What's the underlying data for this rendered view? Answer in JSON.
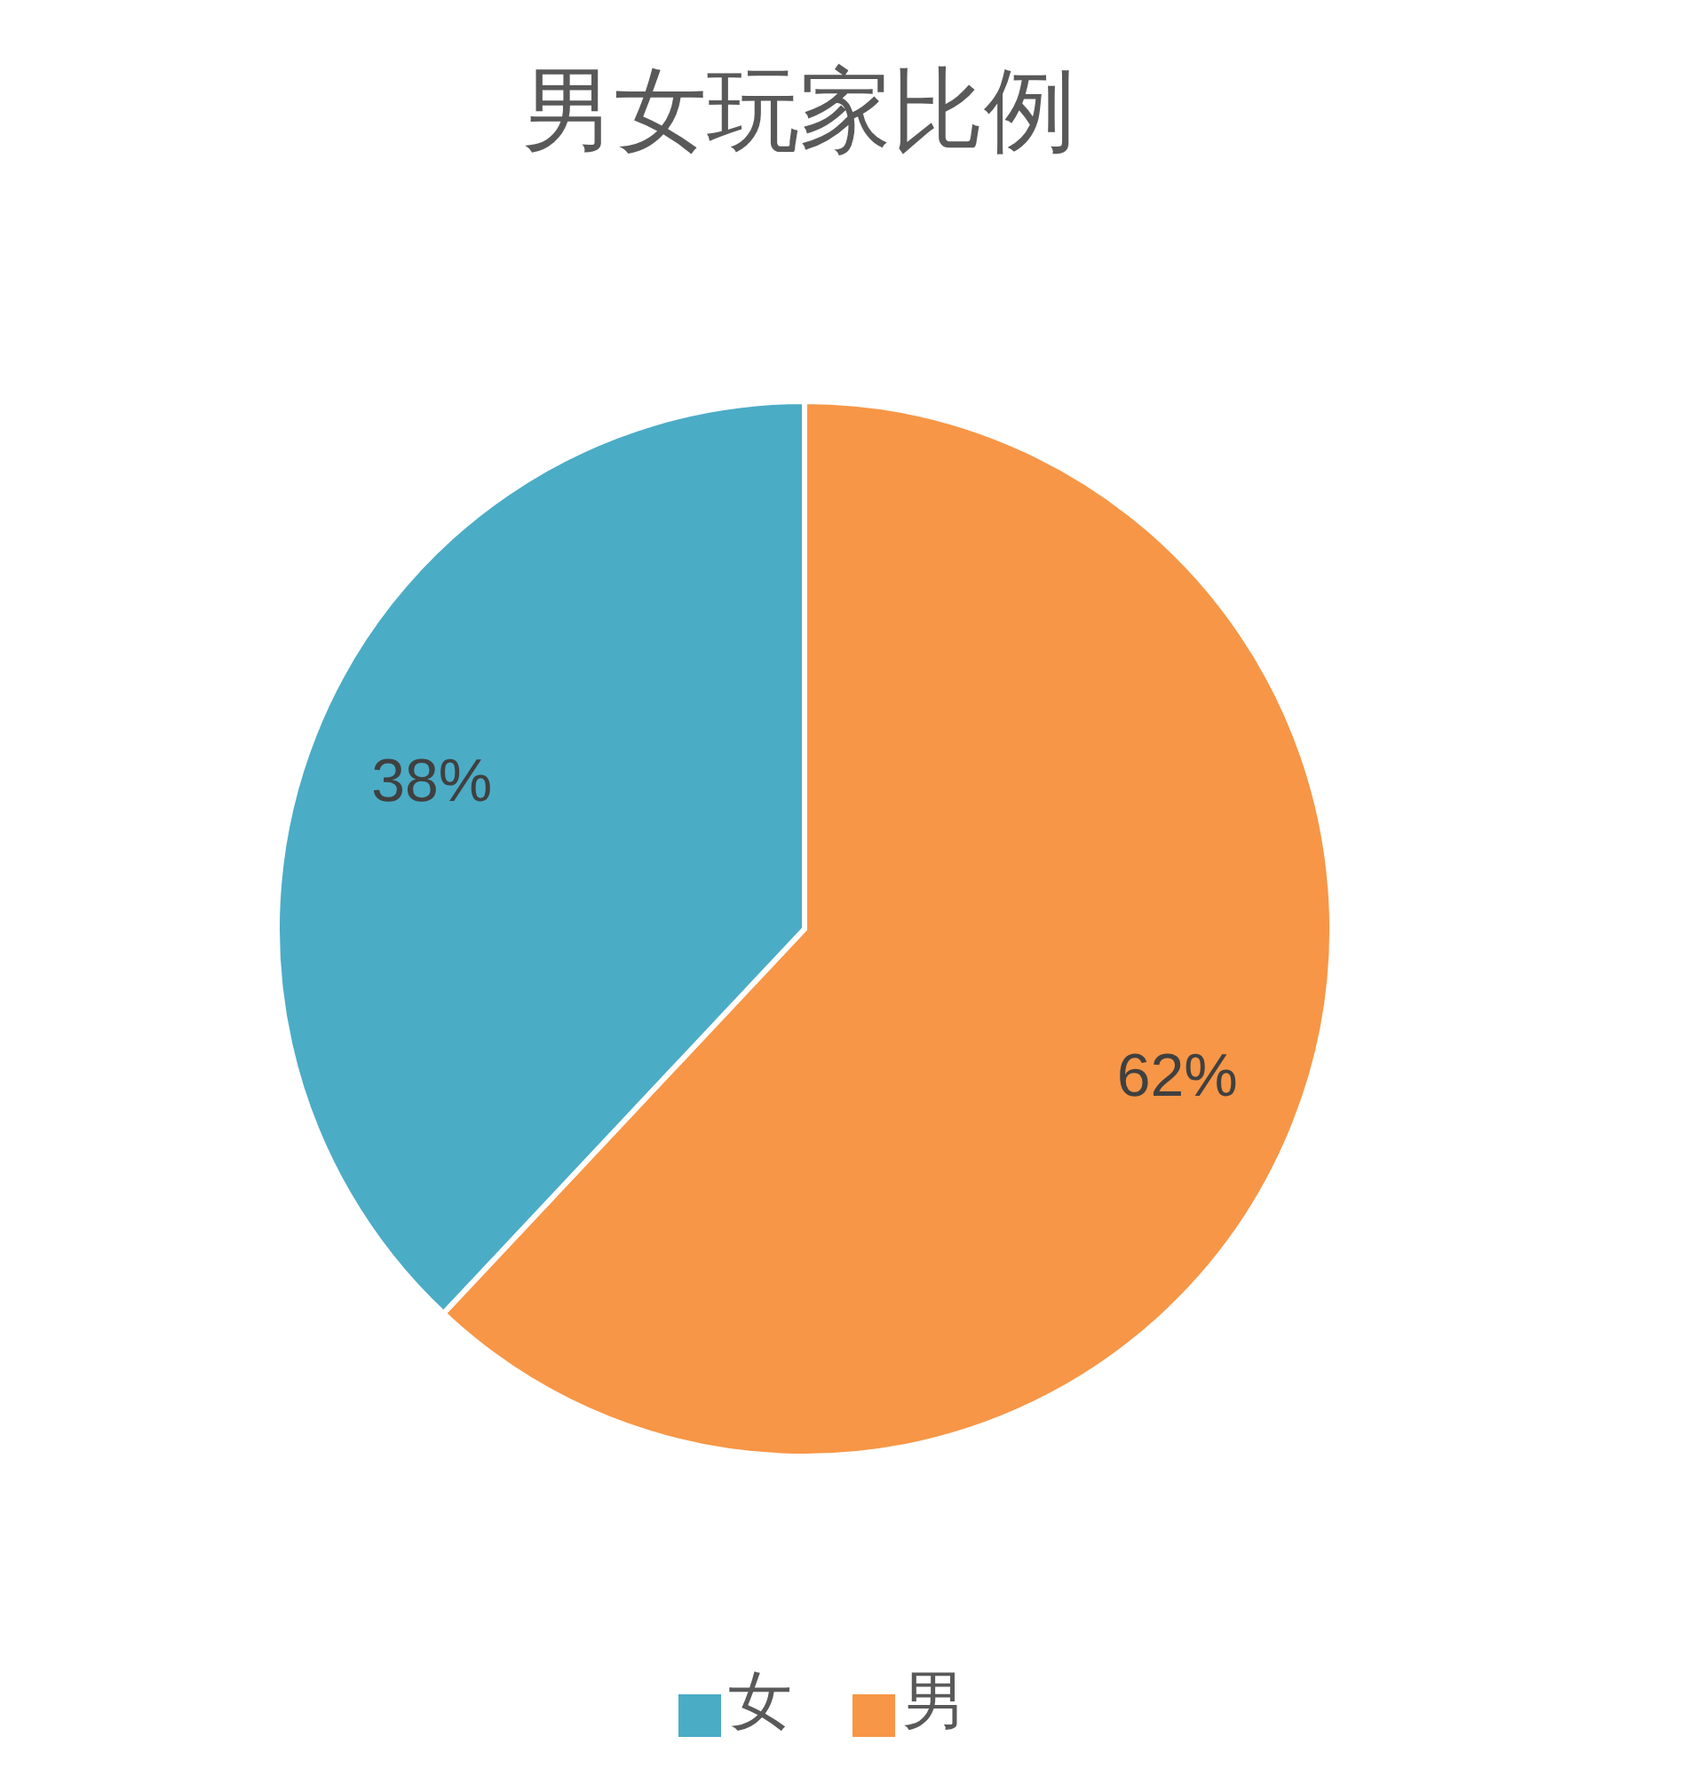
{
  "chart_data": {
    "type": "pie",
    "title": "男女玩家比例",
    "categories": [
      "男",
      "女"
    ],
    "values": [
      62,
      38
    ],
    "colors": [
      "#f79646",
      "#4bacc6"
    ],
    "value_labels": [
      "62%",
      "38%"
    ],
    "legend": "bottom"
  }
}
